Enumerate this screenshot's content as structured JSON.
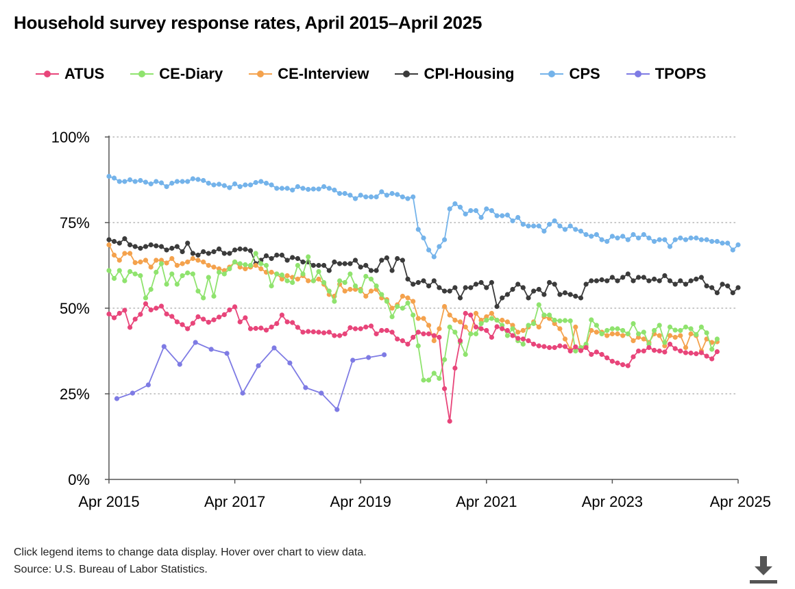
{
  "title": "Household survey response rates, April 2015–April 2025",
  "footer": {
    "note": "Click legend items to change data display. Hover over chart to view data.",
    "source": "Source: U.S. Bureau of Labor Statistics."
  },
  "download_icon": "download-icon",
  "chart_data": {
    "type": "line",
    "title": "Household survey response rates, April 2015–April 2025",
    "xlabel": "",
    "ylabel": "",
    "x_range": [
      2015.25,
      2025.25
    ],
    "ylim": [
      0,
      100
    ],
    "y_ticks": [
      0,
      25,
      50,
      75,
      100
    ],
    "y_tick_labels": [
      "0%",
      "25%",
      "50%",
      "75%",
      "100%"
    ],
    "x_ticks": [
      2015.25,
      2017.25,
      2019.25,
      2021.25,
      2023.25,
      2025.25
    ],
    "x_tick_labels": [
      "Apr 2015",
      "Apr 2017",
      "Apr 2019",
      "Apr 2021",
      "Apr 2023",
      "Apr 2025"
    ],
    "grid": "horizontal dotted",
    "legend_position": "top",
    "series": [
      {
        "name": "ATUS",
        "color": "#e8457a",
        "start": 2015.25,
        "step": 0.08333,
        "values": [
          48.3,
          47.2,
          48.5,
          49.4,
          44.4,
          46.8,
          48.2,
          51.3,
          49.5,
          50,
          50.6,
          48.3,
          47.6,
          46,
          45.2,
          44,
          45.6,
          47.5,
          46.8,
          45.9,
          46.6,
          47.4,
          48.1,
          49.5,
          50.4,
          46,
          47.2,
          44,
          44.1,
          44.2,
          43.6,
          44.5,
          45.5,
          48,
          46,
          45.8,
          44.4,
          43,
          43.2,
          43.1,
          43,
          42.8,
          43,
          42,
          42,
          42.5,
          44.3,
          44,
          44,
          44.5,
          44.8,
          42.5,
          43.5,
          43.5,
          43,
          41,
          40.5,
          39.5,
          41.5,
          43,
          42.5,
          42.5,
          42,
          41.5,
          26.5,
          17,
          32.5,
          40.5,
          48.5,
          48,
          44.5,
          44,
          43.5,
          41.5,
          44.6,
          44,
          43.5,
          42,
          41.2,
          41,
          40.5,
          39.5,
          39,
          38.8,
          38.5,
          38.5,
          39,
          38.8,
          37.5,
          38.7,
          37.6,
          38.5,
          36.5,
          37.2,
          36.5,
          35.5,
          34.5,
          34,
          33.5,
          33.2,
          35.8,
          37.5,
          37.5,
          38.5,
          37.7,
          37.5,
          37.2,
          39.5,
          38.2,
          37.5,
          37,
          36.9,
          36.7,
          37,
          36,
          35.2,
          37.3
        ]
      },
      {
        "name": "CE-Diary",
        "color": "#8fe36e",
        "start": 2015.25,
        "step": 0.08333,
        "values": [
          61,
          58.7,
          61,
          58,
          60.7,
          60,
          59.5,
          53,
          55.5,
          60.5,
          63,
          57,
          60,
          57,
          59.5,
          60.3,
          60,
          55,
          53,
          59,
          53.5,
          60.5,
          60,
          61.5,
          63.5,
          63,
          62.7,
          62.5,
          66,
          63,
          62.5,
          56.5,
          60,
          59.7,
          58,
          57.5,
          62.5,
          60,
          65,
          58,
          60.7,
          57.5,
          55,
          52,
          58,
          57.5,
          60,
          56.5,
          55,
          59.3,
          58.5,
          56.5,
          54,
          52,
          47.5,
          50.5,
          50,
          51.5,
          48,
          39,
          29,
          29,
          31,
          29.5,
          35,
          44.5,
          43,
          40,
          36.5,
          42.5,
          42.5,
          45.5,
          46.5,
          47,
          46.5,
          45,
          42,
          44,
          40.5,
          39.5,
          45,
          45.5,
          51,
          48,
          48,
          46.5,
          46.3,
          46.4,
          46.3,
          37.5,
          38.5,
          39.5,
          46.6,
          45,
          42.5,
          43.5,
          44,
          44,
          43.5,
          42.5,
          45.5,
          42.5,
          43,
          39.5,
          43.5,
          45,
          40,
          44.5,
          43.6,
          43.5,
          44.5,
          44,
          42.3,
          44.5,
          42.8,
          38,
          41
        ]
      },
      {
        "name": "CE-Interview",
        "color": "#f4a24d",
        "start": 2015.25,
        "step": 0.08333,
        "values": [
          68.5,
          65.5,
          64,
          66,
          66,
          63.3,
          63.5,
          64,
          62,
          64,
          64,
          63.2,
          64.5,
          62.5,
          63,
          63.5,
          64.5,
          64,
          63.5,
          62.5,
          62,
          61.5,
          61,
          62,
          63.5,
          62,
          61.5,
          62,
          62.5,
          61.5,
          60.5,
          60.5,
          60,
          58.5,
          59.5,
          59,
          58.5,
          59.5,
          58,
          58,
          58.5,
          57,
          54,
          53.5,
          57,
          55,
          55.5,
          55.5,
          55.5,
          53.5,
          55,
          55.5,
          53,
          52.5,
          50,
          51,
          53.5,
          53,
          52,
          47,
          47,
          45,
          40.5,
          44,
          50.5,
          48,
          46.5,
          46,
          44.5,
          42.5,
          48.5,
          46.5,
          47.5,
          48.5,
          46.5,
          46.5,
          46,
          45,
          43,
          43.5,
          44.5,
          46,
          44.5,
          47.5,
          47,
          45.5,
          44,
          41,
          38,
          44.5,
          38,
          39,
          43.5,
          43,
          43,
          42,
          42.5,
          42.5,
          42,
          42.5,
          40.5,
          41.5,
          41,
          40,
          42.5,
          42,
          39,
          42,
          41.5,
          42,
          38.5,
          42.5,
          42,
          37.5,
          41,
          40,
          40.2
        ]
      },
      {
        "name": "CPI-Housing",
        "color": "#3b3b3b",
        "start": 2015.25,
        "step": 0.08333,
        "values": [
          70,
          69.5,
          69,
          70.3,
          68.5,
          68,
          67.5,
          68,
          68.5,
          68.2,
          68,
          67,
          67.5,
          68,
          66.5,
          69,
          66,
          65.5,
          66.5,
          66,
          66.5,
          67.3,
          66,
          66,
          67,
          67.3,
          67.2,
          66.8,
          63,
          64,
          65.3,
          64.5,
          65.5,
          65.5,
          64,
          64.8,
          64.5,
          63.5,
          63.5,
          62.5,
          62.5,
          62.5,
          61,
          63.5,
          63,
          63,
          63,
          64,
          62,
          62.5,
          61,
          61,
          64,
          64.7,
          61,
          64.5,
          64,
          58.5,
          57,
          57.5,
          58,
          56.5,
          58,
          56,
          55,
          55,
          56,
          53,
          56,
          56,
          57,
          57.5,
          56,
          57.5,
          50.5,
          53,
          54,
          55.5,
          57,
          56,
          53,
          55,
          55.5,
          54,
          57.5,
          57,
          54,
          54.5,
          54,
          53.5,
          53,
          57,
          58,
          58,
          58.3,
          58,
          59,
          58,
          59,
          60,
          58,
          59,
          59,
          58,
          58.5,
          58,
          59.5,
          58,
          57,
          58,
          57,
          58,
          58.5,
          59,
          56.5,
          56,
          54.5,
          57,
          56.5,
          54.5,
          56
        ]
      },
      {
        "name": "CPS",
        "color": "#74b3ea",
        "start": 2015.25,
        "step": 0.08333,
        "values": [
          88.5,
          88,
          87,
          87,
          87.5,
          87,
          87.3,
          86.8,
          86.3,
          87,
          86.6,
          85.5,
          86.5,
          87,
          87,
          87,
          87.8,
          87.6,
          87.3,
          86.5,
          86,
          86.2,
          85.8,
          85.2,
          86.3,
          85.5,
          86,
          86,
          86.7,
          87,
          86.5,
          86,
          85,
          85,
          85,
          84.5,
          85.5,
          85,
          84.7,
          84.8,
          84.8,
          85.5,
          85,
          84.5,
          83.5,
          83.5,
          83,
          82,
          83,
          82.5,
          82.5,
          82.5,
          84,
          83,
          83.5,
          83.2,
          82.5,
          82,
          82.5,
          73,
          70.5,
          67,
          65,
          68,
          70,
          79,
          80.5,
          79.5,
          77.5,
          78.5,
          78.5,
          76.5,
          79,
          78.5,
          77,
          77,
          77.2,
          75.5,
          76.5,
          74.5,
          74,
          74,
          74,
          72.5,
          74.5,
          75.5,
          74,
          73,
          74,
          73,
          72.5,
          71.5,
          71,
          71.5,
          70,
          69.5,
          71,
          70.5,
          71,
          70,
          71.5,
          70.5,
          71.5,
          70.5,
          69.5,
          70,
          70,
          68,
          70,
          70.5,
          70,
          70.5,
          70.5,
          70,
          70,
          69.5,
          69.5,
          69,
          69,
          67,
          68.5
        ]
      },
      {
        "name": "TPOPS",
        "color": "#7e7be4",
        "start": 2015.25,
        "step": 0.08333,
        "points": [
          [
            2015.375,
            23.6
          ],
          [
            2015.625,
            25.2
          ],
          [
            2015.875,
            27.6
          ],
          [
            2016.125,
            38.8
          ],
          [
            2016.375,
            33.6
          ],
          [
            2016.625,
            40
          ],
          [
            2016.875,
            38
          ],
          [
            2017.125,
            36.8
          ],
          [
            2017.375,
            25.2
          ],
          [
            2017.625,
            33.2
          ],
          [
            2017.875,
            38.4
          ],
          [
            2018.125,
            34
          ],
          [
            2018.375,
            26.8
          ],
          [
            2018.625,
            25.2
          ],
          [
            2018.875,
            20.4
          ],
          [
            2019.125,
            34.8
          ],
          [
            2019.375,
            35.6
          ],
          [
            2019.625,
            36.4
          ]
        ]
      }
    ]
  }
}
